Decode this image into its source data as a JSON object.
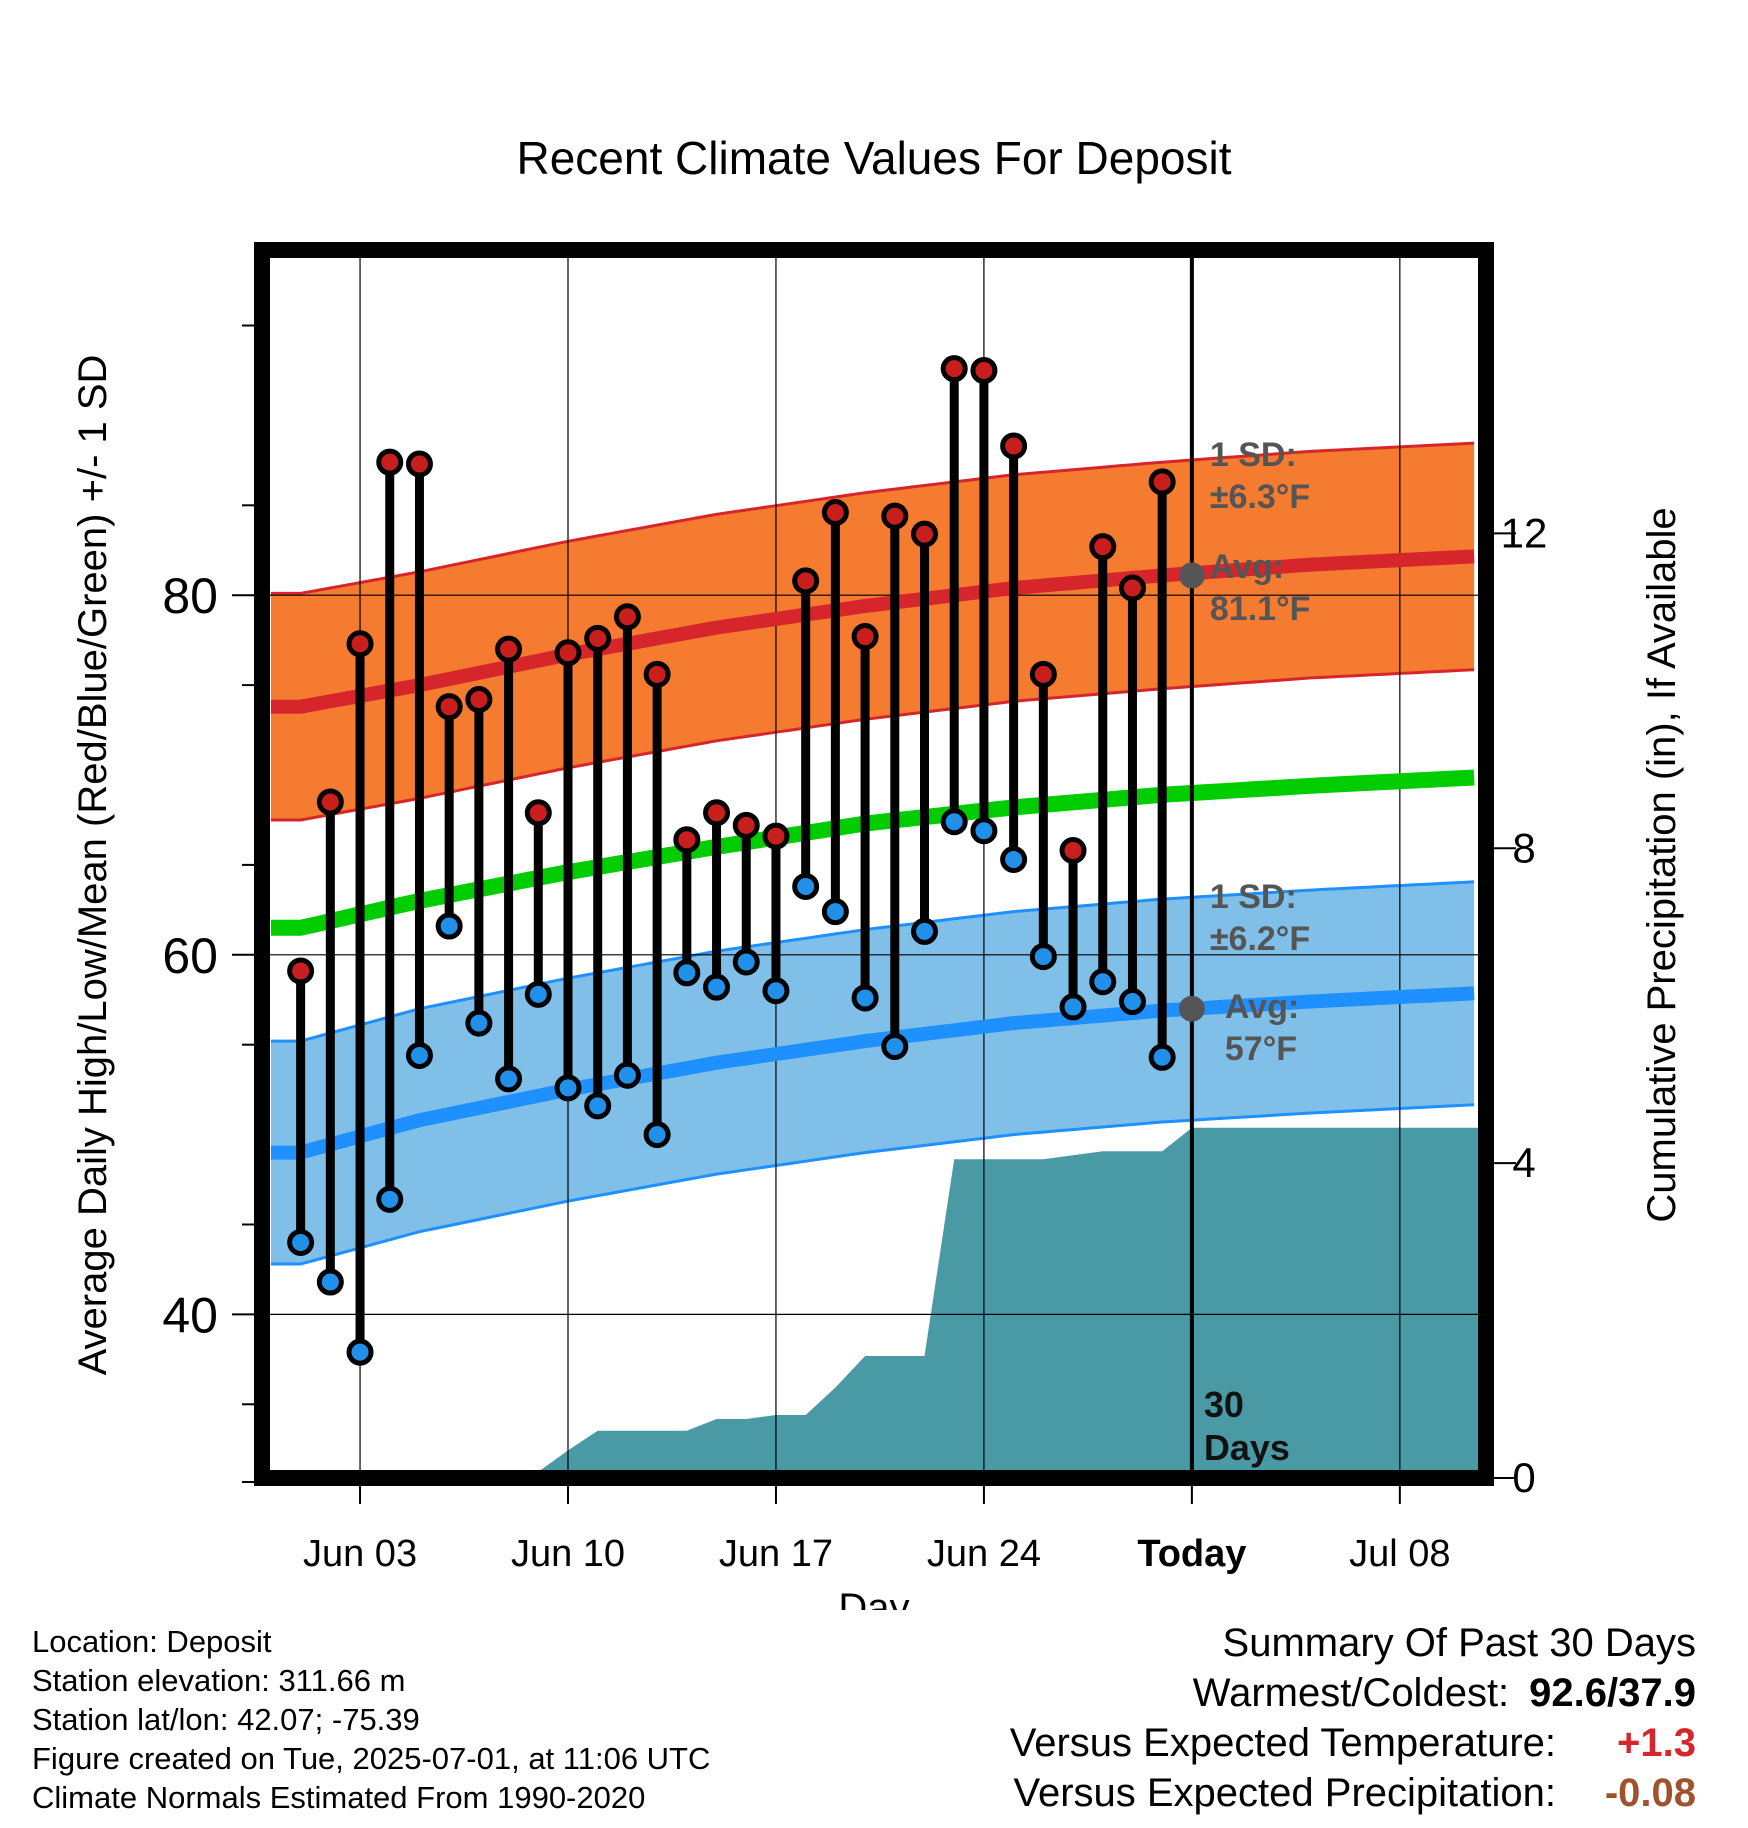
{
  "chart_data": {
    "type": "line",
    "title": "Recent Climate Values For Deposit",
    "xlabel": "Day",
    "ylabel": "Average Daily High/Low/Mean (Red/Blue/Green) +/- 1 SD",
    "y2label": "Cumulative Precipitation (in), If Available",
    "x_ticks": [
      {
        "day": 3,
        "label": "Jun 03"
      },
      {
        "day": 10,
        "label": "Jun 10"
      },
      {
        "day": 17,
        "label": "Jun 17"
      },
      {
        "day": 24,
        "label": "Jun 24"
      },
      {
        "day": 31,
        "label": "Today"
      },
      {
        "day": 38,
        "label": "Jul 08"
      }
    ],
    "xlim": [
      -0.3,
      40.9
    ],
    "ylim": [
      30.9,
      99.2
    ],
    "y_ticks": [
      40,
      60,
      80
    ],
    "y2lim": [
      0,
      15.6
    ],
    "y2_ticks": [
      0,
      4,
      8,
      12
    ],
    "gridlines": true,
    "today_day": 31,
    "highs": [
      59.1,
      68.5,
      77.3,
      87.4,
      87.3,
      73.8,
      74.2,
      77.0,
      67.9,
      76.8,
      77.6,
      78.8,
      75.6,
      66.4,
      67.9,
      67.2,
      66.6,
      80.8,
      84.6,
      77.7,
      84.4,
      83.4,
      92.6,
      92.5,
      88.3,
      75.6,
      65.8,
      82.7,
      80.4,
      86.3
    ],
    "lows": [
      44.0,
      41.8,
      37.9,
      46.4,
      54.4,
      61.6,
      56.2,
      53.1,
      57.8,
      52.6,
      51.6,
      53.3,
      50.0,
      59.0,
      58.2,
      59.6,
      58.0,
      63.8,
      62.4,
      57.6,
      54.9,
      61.3,
      67.4,
      66.9,
      65.3,
      59.9,
      57.1,
      58.5,
      57.4,
      54.3
    ],
    "normal_high": {
      "days": [
        1,
        5,
        10,
        15,
        20,
        25,
        30,
        35,
        41
      ],
      "values": [
        73.8,
        75.0,
        76.7,
        78.2,
        79.4,
        80.4,
        81.1,
        81.7,
        82.2
      ]
    },
    "normal_low": {
      "days": [
        1,
        5,
        10,
        15,
        20,
        25,
        30,
        35,
        41
      ],
      "values": [
        49.0,
        50.8,
        52.5,
        54.0,
        55.2,
        56.2,
        56.9,
        57.4,
        57.9
      ]
    },
    "normal_mean": {
      "days": [
        1,
        5,
        10,
        15,
        20,
        25,
        30,
        35,
        41
      ],
      "values": [
        61.5,
        63.0,
        64.6,
        66.0,
        67.3,
        68.2,
        68.9,
        69.4,
        69.9
      ]
    },
    "high_sd": 6.3,
    "low_sd": 6.2,
    "precip_cumulative": {
      "days": [
        0.3,
        6.0,
        7.0,
        8.0,
        9.0,
        10.0,
        11.0,
        12.0,
        13.0,
        14.0,
        15.0,
        16.0,
        17.0,
        18.0,
        19.0,
        20.0,
        21.0,
        22.0,
        23.0,
        24.0,
        25.0,
        26.0,
        27.0,
        28.0,
        29.0,
        30.0,
        31.0,
        40.9
      ],
      "values": [
        0.0,
        0.0,
        0.05,
        0.08,
        0.08,
        0.35,
        0.6,
        0.6,
        0.6,
        0.6,
        0.75,
        0.75,
        0.8,
        0.8,
        1.15,
        1.55,
        1.55,
        1.55,
        4.05,
        4.05,
        4.05,
        4.05,
        4.1,
        4.15,
        4.15,
        4.15,
        4.45,
        4.45
      ]
    },
    "annotations": {
      "high_sd_label": "1 SD:",
      "high_sd_value": "±6.3°F",
      "high_avg_label": "Avg:",
      "high_avg_value": "81.1°F",
      "high_avg_dot": 81.1,
      "low_sd_label": "1 SD:",
      "low_sd_value": "±6.2°F",
      "low_avg_label": "Avg:",
      "low_avg_value": "57°F",
      "low_avg_dot": 57.0,
      "days_label_1": "30",
      "days_label_2": "Days"
    },
    "colors": {
      "high_band": "#f47b30",
      "high_line": "#d6262b",
      "low_band": "#80c0e8",
      "low_line": "#1e90ff",
      "mean_line": "#00cc00",
      "precip": "#4a9aa5",
      "annotation": "#555555",
      "dot_high": "#c81e1e",
      "dot_low": "#2090e8"
    }
  },
  "footer": {
    "location": "Location: Deposit",
    "elevation": "Station elevation: 311.66 m",
    "latlon": "Station lat/lon: 42.07; -75.39",
    "created": "Figure created on Tue, 2025-07-01, at 11:06 UTC",
    "normals": "Climate Normals Estimated From 1990-2020"
  },
  "summary": {
    "title": "Summary Of Past 30 Days",
    "warmest_label": "Warmest/Coldest:",
    "warmest_value": "92.6/37.9",
    "temp_label": "Versus Expected Temperature:",
    "temp_value": "+1.3",
    "temp_color": "#d6262b",
    "precip_label": "Versus Expected Precipitation:",
    "precip_value": "-0.08",
    "precip_color": "#a0522d"
  }
}
